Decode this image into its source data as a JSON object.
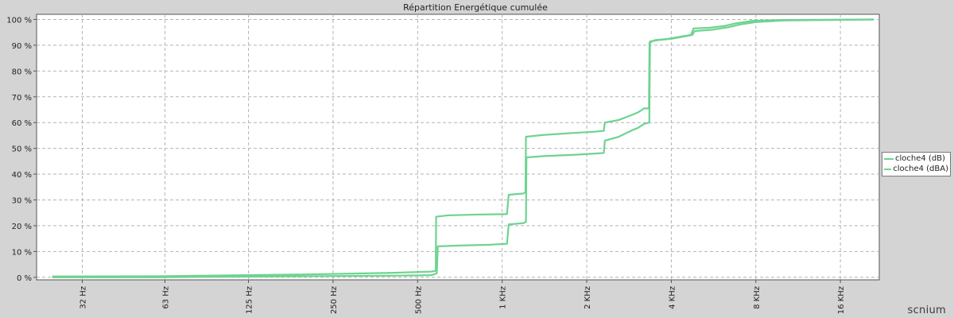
{
  "chart_data": {
    "type": "line",
    "title": "Répartition Energétique cumulée",
    "xlabel": "",
    "ylabel": "",
    "x_scale": "log",
    "x_ticks": [
      {
        "value": 32,
        "label": "32 Hz"
      },
      {
        "value": 63,
        "label": "63 Hz"
      },
      {
        "value": 125,
        "label": "125 Hz"
      },
      {
        "value": 250,
        "label": "250 Hz"
      },
      {
        "value": 500,
        "label": "500 Hz"
      },
      {
        "value": 1000,
        "label": "1 KHz"
      },
      {
        "value": 2000,
        "label": "2 KHz"
      },
      {
        "value": 4000,
        "label": "4 KHz"
      },
      {
        "value": 8000,
        "label": "8 KHz"
      },
      {
        "value": 16000,
        "label": "16 KHz"
      }
    ],
    "xlim": [
      22,
      22000
    ],
    "y_ticks": [
      {
        "value": 0,
        "label": "0 %"
      },
      {
        "value": 10,
        "label": "10 %"
      },
      {
        "value": 20,
        "label": "20 %"
      },
      {
        "value": 30,
        "label": "30 %"
      },
      {
        "value": 40,
        "label": "40 %"
      },
      {
        "value": 50,
        "label": "50 %"
      },
      {
        "value": 60,
        "label": "60 %"
      },
      {
        "value": 70,
        "label": "70 %"
      },
      {
        "value": 80,
        "label": "80 %"
      },
      {
        "value": 90,
        "label": "90 %"
      },
      {
        "value": 100,
        "label": "100 %"
      }
    ],
    "ylim": [
      -1,
      102
    ],
    "grid": true,
    "legend_position": "right",
    "series": [
      {
        "name": "cloche4 (dB)",
        "color": "#6ed390",
        "points": [
          [
            25,
            0.3
          ],
          [
            60,
            0.4
          ],
          [
            100,
            0.7
          ],
          [
            200,
            1.1
          ],
          [
            400,
            1.7
          ],
          [
            560,
            2.2
          ],
          [
            580,
            2.5
          ],
          [
            582,
            23.5
          ],
          [
            640,
            24.0
          ],
          [
            800,
            24.3
          ],
          [
            1040,
            24.5
          ],
          [
            1055,
            32.0
          ],
          [
            1190,
            32.5
          ],
          [
            1210,
            33.0
          ],
          [
            1215,
            54.5
          ],
          [
            1400,
            55.2
          ],
          [
            1800,
            56.0
          ],
          [
            2150,
            56.5
          ],
          [
            2300,
            56.8
          ],
          [
            2320,
            60.0
          ],
          [
            2600,
            61.0
          ],
          [
            2900,
            63.0
          ],
          [
            3050,
            64.0
          ],
          [
            3200,
            65.5
          ],
          [
            3330,
            65.5
          ],
          [
            3345,
            91.0
          ],
          [
            3500,
            92.0
          ],
          [
            3900,
            92.5
          ],
          [
            4400,
            93.5
          ],
          [
            4700,
            94.0
          ],
          [
            4800,
            96.5
          ],
          [
            5500,
            96.8
          ],
          [
            6200,
            97.5
          ],
          [
            6800,
            98.5
          ],
          [
            7800,
            99.5
          ],
          [
            10000,
            99.8
          ],
          [
            21000,
            100
          ]
        ]
      },
      {
        "name": "cloche4 (dBA)",
        "color": "#6ed390",
        "points": [
          [
            25,
            0
          ],
          [
            60,
            0
          ],
          [
            100,
            0.2
          ],
          [
            200,
            0.4
          ],
          [
            400,
            0.6
          ],
          [
            560,
            0.8
          ],
          [
            585,
            1.5
          ],
          [
            590,
            12.0
          ],
          [
            700,
            12.3
          ],
          [
            900,
            12.6
          ],
          [
            1040,
            13.0
          ],
          [
            1055,
            20.5
          ],
          [
            1190,
            21.0
          ],
          [
            1215,
            21.5
          ],
          [
            1220,
            46.5
          ],
          [
            1400,
            47.0
          ],
          [
            1800,
            47.5
          ],
          [
            2150,
            48.0
          ],
          [
            2300,
            48.2
          ],
          [
            2320,
            53.0
          ],
          [
            2600,
            54.5
          ],
          [
            2900,
            57.0
          ],
          [
            3050,
            58.0
          ],
          [
            3200,
            59.5
          ],
          [
            3340,
            60.0
          ],
          [
            3360,
            91.5
          ],
          [
            3600,
            92.0
          ],
          [
            4000,
            92.5
          ],
          [
            4500,
            93.5
          ],
          [
            4750,
            94.0
          ],
          [
            4850,
            95.5
          ],
          [
            5600,
            96.0
          ],
          [
            6400,
            97.0
          ],
          [
            7000,
            98.0
          ],
          [
            8000,
            99.0
          ],
          [
            10000,
            99.6
          ],
          [
            21000,
            100
          ]
        ]
      }
    ],
    "colors": {
      "plot_background": "#ffffff",
      "page_background": "#d4d4d4",
      "grid": "#b4b4b4",
      "axis": "#555555",
      "text": "#222222"
    }
  },
  "brand": "scnium"
}
